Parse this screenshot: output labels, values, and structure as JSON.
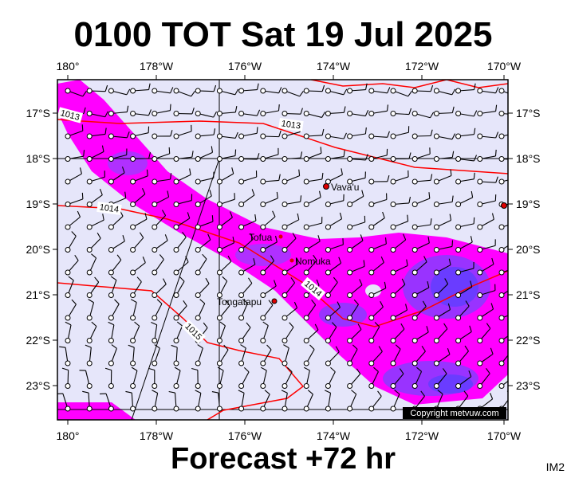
{
  "header": {
    "title": "0100 TOT Sat 19 Jul 2025"
  },
  "map": {
    "lon_labels": [
      "180°",
      "178°W",
      "176°W",
      "174°W",
      "172°W",
      "170°W"
    ],
    "lat_labels": [
      "17°S",
      "18°S",
      "19°S",
      "20°S",
      "21°S",
      "22°S",
      "23°S"
    ],
    "places": [
      "Vava'u",
      "Tofua",
      "Nomuka",
      "Tongatapu"
    ],
    "isobar_labels": [
      "1013",
      "1013",
      "1014",
      "1014",
      "1015"
    ],
    "copyright": "Copyright metvuw.com"
  },
  "footer": {
    "forecast": "Forecast +72 hr",
    "code": "IM2"
  }
}
